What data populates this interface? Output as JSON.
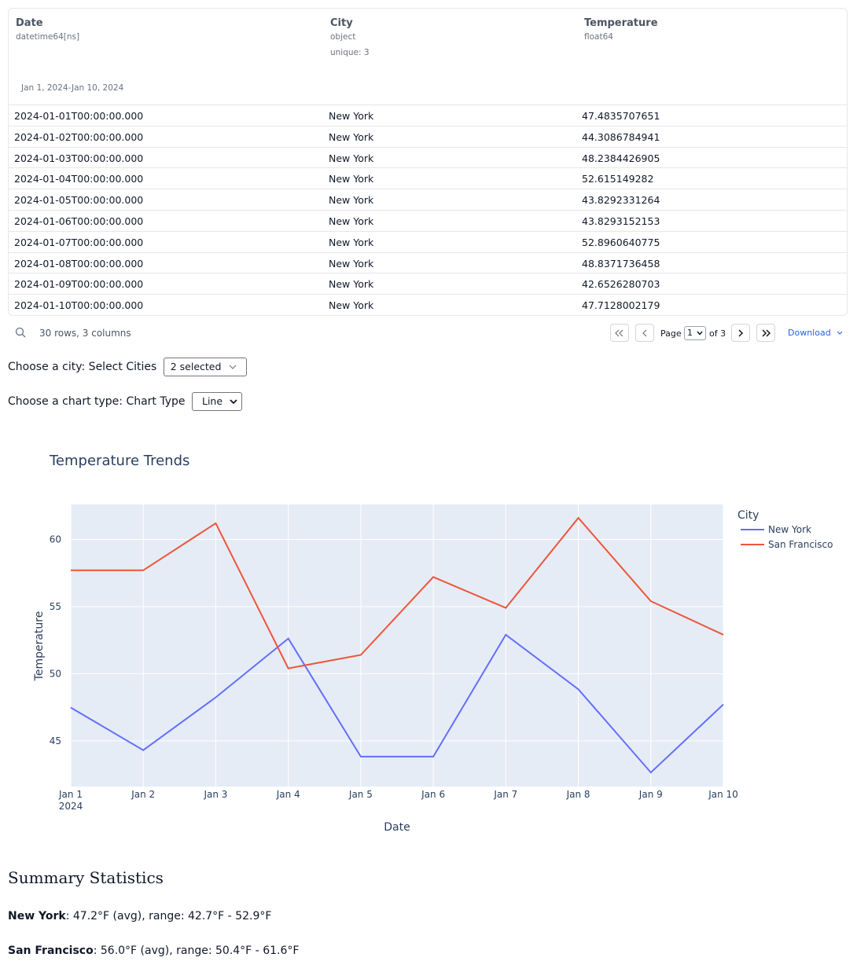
{
  "table": {
    "columns": [
      {
        "name": "Date",
        "dtype": "datetime64[ns]",
        "range": "Jan 1, 2024-Jan 10, 2024"
      },
      {
        "name": "City",
        "dtype": "object",
        "unique": "unique: 3"
      },
      {
        "name": "Temperature",
        "dtype": "float64"
      }
    ],
    "rows": [
      [
        "2024-01-01T00:00:00.000",
        "New York",
        "47.4835707651"
      ],
      [
        "2024-01-02T00:00:00.000",
        "New York",
        "44.3086784941"
      ],
      [
        "2024-01-03T00:00:00.000",
        "New York",
        "48.2384426905"
      ],
      [
        "2024-01-04T00:00:00.000",
        "New York",
        "52.615149282"
      ],
      [
        "2024-01-05T00:00:00.000",
        "New York",
        "43.8292331264"
      ],
      [
        "2024-01-06T00:00:00.000",
        "New York",
        "43.8293152153"
      ],
      [
        "2024-01-07T00:00:00.000",
        "New York",
        "52.8960640775"
      ],
      [
        "2024-01-08T00:00:00.000",
        "New York",
        "48.8371736458"
      ],
      [
        "2024-01-09T00:00:00.000",
        "New York",
        "42.6526280703"
      ],
      [
        "2024-01-10T00:00:00.000",
        "New York",
        "47.7128002179"
      ]
    ]
  },
  "footer": {
    "row_count": "30 rows, 3 columns",
    "page_label": "Page",
    "page_value": "1",
    "page_of": "of 3",
    "download": "Download"
  },
  "controls": {
    "city_label": "Choose a city: Select Cities",
    "city_value": "2 selected",
    "chart_label": "Choose a chart type: Chart Type",
    "chart_value": "Line"
  },
  "chart_data": {
    "type": "line",
    "title": "Temperature Trends",
    "xlabel": "Date",
    "ylabel": "Temperature",
    "x": [
      "Jan 1",
      "Jan 2",
      "Jan 3",
      "Jan 4",
      "Jan 5",
      "Jan 6",
      "Jan 7",
      "Jan 8",
      "Jan 9",
      "Jan 10"
    ],
    "x_year_label": "2024",
    "y_ticks": [
      45,
      50,
      55,
      60
    ],
    "ylim": [
      41.6,
      62.6
    ],
    "legend_title": "City",
    "legend_position": "top-right",
    "grid": true,
    "series": [
      {
        "name": "New York",
        "color": "#636efa",
        "values": [
          47.48,
          44.31,
          48.24,
          52.62,
          43.83,
          43.83,
          52.9,
          48.84,
          42.65,
          47.71
        ]
      },
      {
        "name": "San Francisco",
        "color": "#ef553b",
        "values": [
          57.7,
          57.7,
          61.2,
          50.4,
          51.4,
          57.2,
          54.9,
          61.6,
          55.4,
          52.9
        ]
      }
    ]
  },
  "summary": {
    "title": "Summary Statistics",
    "lines": [
      {
        "city": "New York",
        "text": ": 47.2°F (avg), range: 42.7°F - 52.9°F"
      },
      {
        "city": "San Francisco",
        "text": ": 56.0°F (avg), range: 50.4°F - 61.6°F"
      }
    ]
  }
}
